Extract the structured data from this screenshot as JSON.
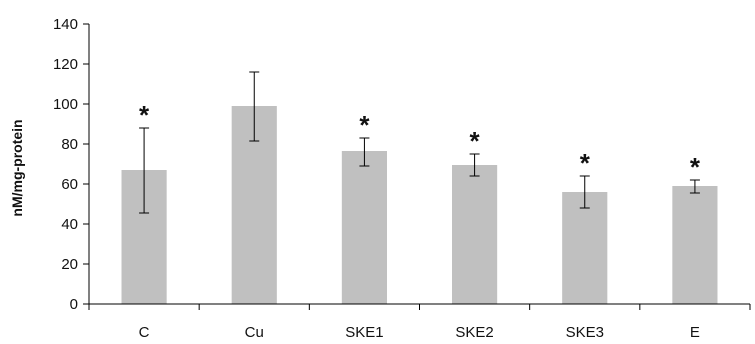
{
  "chart_data": {
    "type": "bar",
    "title": "",
    "xlabel": "",
    "ylabel": "nM/mg-protein",
    "ylim": [
      0,
      140
    ],
    "yticks": [
      0,
      20,
      40,
      60,
      80,
      100,
      120,
      140
    ],
    "grid": false,
    "categories": [
      "C",
      "Cu",
      "SKE1",
      "SKE2",
      "SKE3",
      "E"
    ],
    "values": [
      67,
      99,
      76.5,
      69.5,
      56,
      59
    ],
    "error_low": [
      45.5,
      81.5,
      69,
      64,
      48,
      55.5
    ],
    "error_high": [
      88,
      116,
      83,
      75,
      64,
      62
    ],
    "significance": [
      "*",
      "",
      "*",
      "*",
      "*",
      "*"
    ],
    "bar_color": "#c0c0c0",
    "axis_color": "#000000"
  }
}
